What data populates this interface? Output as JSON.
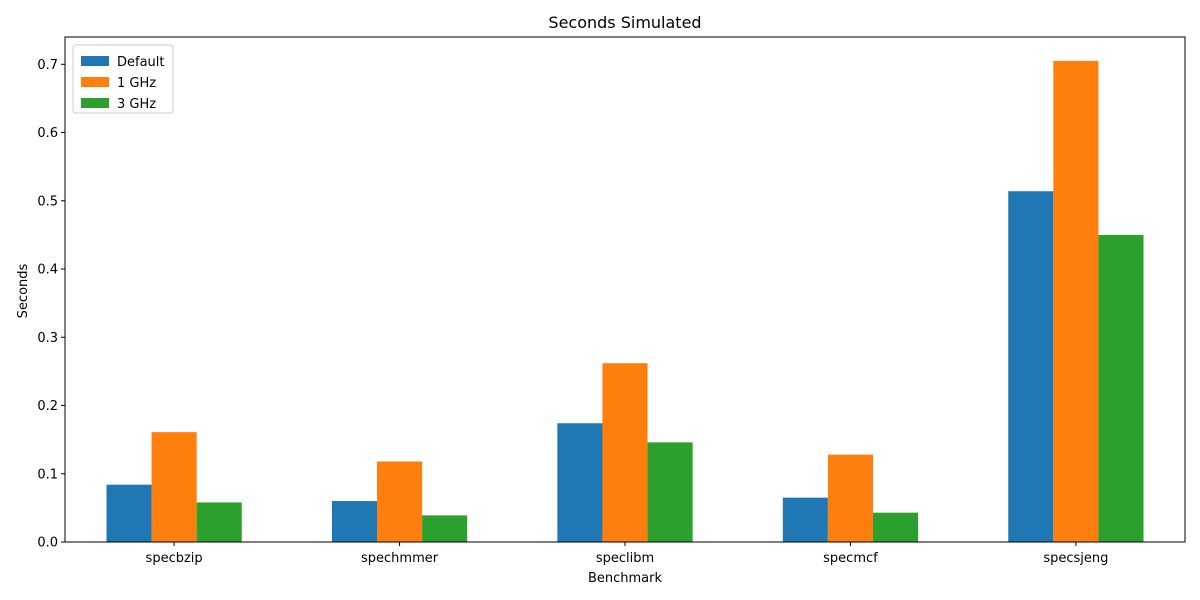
{
  "chart_data": {
    "type": "bar",
    "title": "Seconds Simulated",
    "xlabel": "Benchmark",
    "ylabel": "Seconds",
    "categories": [
      "specbzip",
      "spechmmer",
      "speclibm",
      "specmcf",
      "specsjeng"
    ],
    "series": [
      {
        "name": "Default",
        "color": "#1f77b4",
        "values": [
          0.084,
          0.06,
          0.174,
          0.065,
          0.514
        ]
      },
      {
        "name": "1 GHz",
        "color": "#ff7f0e",
        "values": [
          0.161,
          0.118,
          0.262,
          0.128,
          0.705
        ]
      },
      {
        "name": "3 GHz",
        "color": "#2ca02c",
        "values": [
          0.058,
          0.039,
          0.146,
          0.043,
          0.45
        ]
      }
    ],
    "ylim": [
      0,
      0.74
    ],
    "yticks": [
      "0.0",
      "0.1",
      "0.2",
      "0.3",
      "0.4",
      "0.5",
      "0.6",
      "0.7"
    ],
    "legend_position": "top-left",
    "grid": false
  }
}
